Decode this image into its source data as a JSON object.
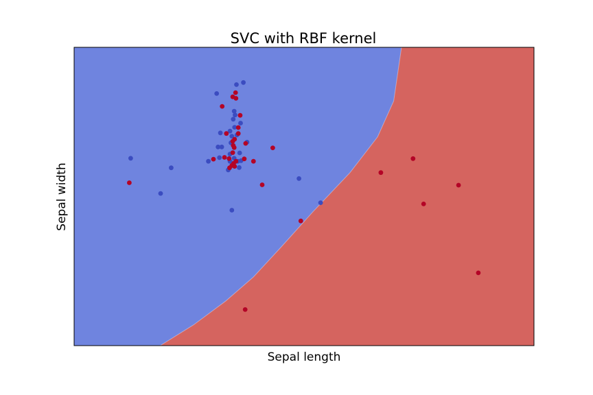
{
  "chart_data": {
    "type": "scatter",
    "title": "SVC with RBF kernel",
    "xlabel": "Sepal length",
    "ylabel": "Sepal width",
    "xlim": [
      0,
      1
    ],
    "ylim": [
      0,
      1
    ],
    "xticks_visible": false,
    "yticks_visible": false,
    "grid": false,
    "legend": "none",
    "region_colors": {
      "class_0": "#6f84df",
      "class_1": "#d5645f"
    },
    "decision_boundary": [
      [
        0.187,
        0.0
      ],
      [
        0.26,
        0.07
      ],
      [
        0.33,
        0.15
      ],
      [
        0.39,
        0.23
      ],
      [
        0.45,
        0.33
      ],
      [
        0.52,
        0.45
      ],
      [
        0.6,
        0.58
      ],
      [
        0.66,
        0.7
      ],
      [
        0.695,
        0.82
      ],
      [
        0.712,
        1.0
      ]
    ],
    "series": [
      {
        "color": "#3b4cc0",
        "points": [
          [
            0.368,
            0.882
          ],
          [
            0.353,
            0.875
          ],
          [
            0.31,
            0.845
          ],
          [
            0.348,
            0.786
          ],
          [
            0.35,
            0.773
          ],
          [
            0.346,
            0.759
          ],
          [
            0.362,
            0.746
          ],
          [
            0.349,
            0.732
          ],
          [
            0.339,
            0.719
          ],
          [
            0.318,
            0.713
          ],
          [
            0.354,
            0.706
          ],
          [
            0.343,
            0.702
          ],
          [
            0.376,
            0.682
          ],
          [
            0.341,
            0.68
          ],
          [
            0.321,
            0.666
          ],
          [
            0.313,
            0.666
          ],
          [
            0.36,
            0.646
          ],
          [
            0.339,
            0.642
          ],
          [
            0.316,
            0.63
          ],
          [
            0.348,
            0.628
          ],
          [
            0.292,
            0.618
          ],
          [
            0.356,
            0.618
          ],
          [
            0.339,
            0.618
          ],
          [
            0.363,
            0.62
          ],
          [
            0.123,
            0.628
          ],
          [
            0.211,
            0.596
          ],
          [
            0.359,
            0.597
          ],
          [
            0.335,
            0.589
          ],
          [
            0.489,
            0.56
          ],
          [
            0.188,
            0.51
          ],
          [
            0.536,
            0.479
          ],
          [
            0.343,
            0.454
          ]
        ]
      },
      {
        "color": "#b40426",
        "points": [
          [
            0.351,
            0.848
          ],
          [
            0.345,
            0.834
          ],
          [
            0.352,
            0.829
          ],
          [
            0.322,
            0.802
          ],
          [
            0.361,
            0.772
          ],
          [
            0.357,
            0.731
          ],
          [
            0.331,
            0.711
          ],
          [
            0.357,
            0.711
          ],
          [
            0.349,
            0.692
          ],
          [
            0.345,
            0.685
          ],
          [
            0.373,
            0.678
          ],
          [
            0.346,
            0.671
          ],
          [
            0.432,
            0.663
          ],
          [
            0.348,
            0.664
          ],
          [
            0.345,
            0.647
          ],
          [
            0.327,
            0.631
          ],
          [
            0.303,
            0.625
          ],
          [
            0.337,
            0.627
          ],
          [
            0.37,
            0.626
          ],
          [
            0.39,
            0.618
          ],
          [
            0.352,
            0.618
          ],
          [
            0.347,
            0.611
          ],
          [
            0.343,
            0.604
          ],
          [
            0.349,
            0.601
          ],
          [
            0.338,
            0.596
          ],
          [
            0.12,
            0.546
          ],
          [
            0.409,
            0.539
          ],
          [
            0.493,
            0.418
          ],
          [
            0.667,
            0.58
          ],
          [
            0.737,
            0.627
          ],
          [
            0.836,
            0.538
          ],
          [
            0.76,
            0.475
          ],
          [
            0.879,
            0.244
          ],
          [
            0.372,
            0.121
          ]
        ]
      }
    ]
  }
}
